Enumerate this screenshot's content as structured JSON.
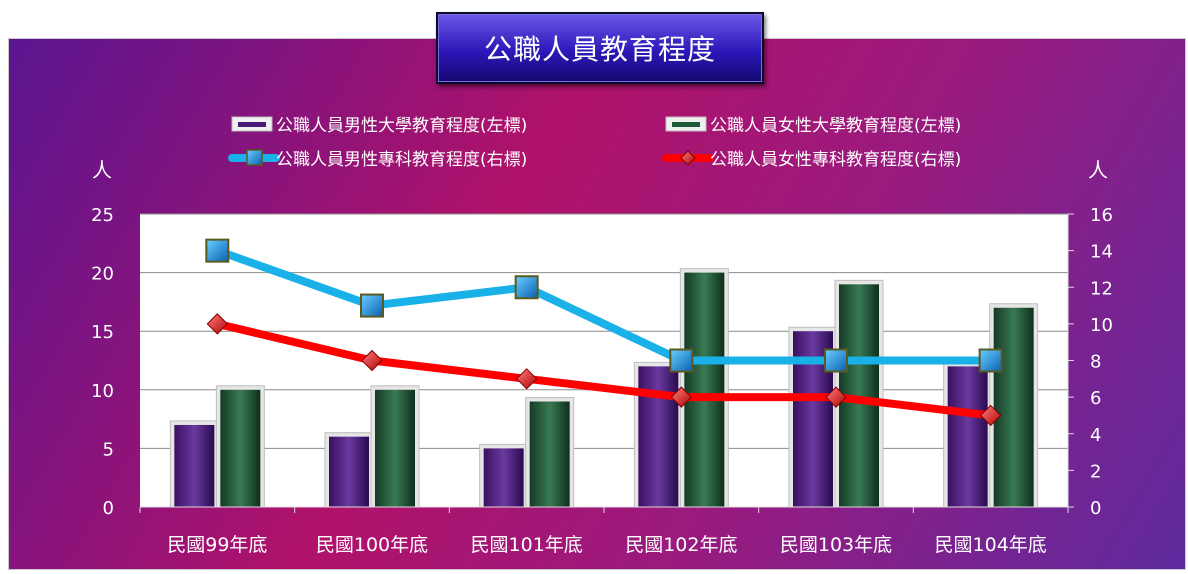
{
  "chart_data": {
    "type": "bar",
    "title": "公職人員教育程度",
    "ylabel_left": "人",
    "ylabel_right": "人",
    "categories": [
      "民國99年底",
      "民國100年底",
      "民國101年底",
      "民國102年底",
      "民國103年底",
      "民國104年底"
    ],
    "ylim_left": [
      0,
      25
    ],
    "yticks_left": [
      "0",
      "5",
      "10",
      "15",
      "20",
      "25"
    ],
    "ylim_right": [
      0,
      16
    ],
    "yticks_right": [
      "0",
      "2",
      "4",
      "6",
      "8",
      "10",
      "12",
      "14",
      "16"
    ],
    "grid": true,
    "legend_position": "top",
    "series": [
      {
        "name": "公職人員男性大學教育程度(左標)",
        "kind": "bar",
        "axis": "left",
        "color": "#4a1a7a",
        "values": [
          7,
          6,
          5,
          12,
          15,
          12
        ]
      },
      {
        "name": "公職人員女性大學教育程度(左標)",
        "kind": "bar",
        "axis": "left",
        "color": "#1e5a3a",
        "values": [
          10,
          10,
          9,
          20,
          19,
          17
        ]
      },
      {
        "name": "公職人員男性專科教育程度(右標)",
        "kind": "line",
        "axis": "right",
        "color": "#1ab0e8",
        "values": [
          14,
          11,
          12,
          8,
          8,
          8
        ]
      },
      {
        "name": "公職人員女性專科教育程度(右標)",
        "kind": "line",
        "axis": "right",
        "color": "#ff0000",
        "values": [
          10,
          8,
          7,
          6,
          6,
          5
        ]
      }
    ]
  }
}
